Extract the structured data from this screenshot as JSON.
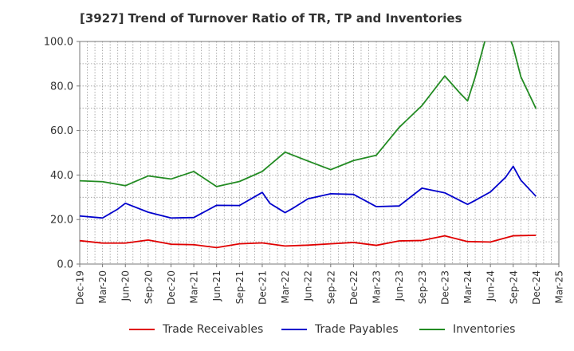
{
  "chart_data": {
    "type": "line",
    "title": "[3927]  Trend of Turnover Ratio of TR, TP and Inventories",
    "xlabel": "",
    "ylabel": "",
    "ylim": [
      0,
      100
    ],
    "y_ticks": [
      "0.0",
      "20.0",
      "40.0",
      "60.0",
      "80.0",
      "100.0"
    ],
    "x_ticks": [
      "Dec-19",
      "Mar-20",
      "Jun-20",
      "Sep-20",
      "Dec-20",
      "Mar-21",
      "Jun-21",
      "Sep-21",
      "Dec-21",
      "Mar-22",
      "Jun-22",
      "Sep-22",
      "Dec-22",
      "Mar-23",
      "Jun-23",
      "Sep-23",
      "Dec-23",
      "Mar-24",
      "Jun-24",
      "Sep-24",
      "Dec-24",
      "Mar-25"
    ],
    "grid": true,
    "legend_position": "bottom",
    "series": [
      {
        "name": "Trade Receivables",
        "color": "#e00000",
        "points": [
          [
            0,
            10.5
          ],
          [
            1,
            9.4
          ],
          [
            2,
            9.4
          ],
          [
            3,
            10.8
          ],
          [
            4,
            8.9
          ],
          [
            5,
            8.7
          ],
          [
            6,
            7.4
          ],
          [
            7,
            9.1
          ],
          [
            8,
            9.5
          ],
          [
            9,
            8.1
          ],
          [
            10,
            8.5
          ],
          [
            11,
            9.1
          ],
          [
            12,
            9.7
          ],
          [
            13,
            8.4
          ],
          [
            14,
            10.4
          ],
          [
            15,
            10.6
          ],
          [
            16,
            12.7
          ],
          [
            17,
            10.1
          ],
          [
            18,
            9.9
          ],
          [
            19,
            12.7
          ],
          [
            20,
            12.9
          ]
        ]
      },
      {
        "name": "Trade Payables",
        "color": "#0000cc",
        "points": [
          [
            0,
            21.6
          ],
          [
            1,
            20.7
          ],
          [
            1.667,
            24.7
          ],
          [
            2,
            27.3
          ],
          [
            3,
            23.3
          ],
          [
            4,
            20.7
          ],
          [
            5,
            20.9
          ],
          [
            6,
            26.4
          ],
          [
            7,
            26.3
          ],
          [
            8,
            32.2
          ],
          [
            8.333,
            27.3
          ],
          [
            9,
            23.1
          ],
          [
            9.333,
            25.0
          ],
          [
            10,
            29.3
          ],
          [
            11,
            31.6
          ],
          [
            12,
            31.3
          ],
          [
            13,
            25.8
          ],
          [
            14,
            26.1
          ],
          [
            15,
            34.1
          ],
          [
            16,
            32.0
          ],
          [
            17,
            26.8
          ],
          [
            17.333,
            28.6
          ],
          [
            18,
            32.4
          ],
          [
            18.667,
            39.0
          ],
          [
            19,
            43.9
          ],
          [
            19.333,
            37.7
          ],
          [
            20,
            30.4
          ]
        ]
      },
      {
        "name": "Inventories",
        "color": "#228b22",
        "points": [
          [
            0,
            37.4
          ],
          [
            1,
            37.0
          ],
          [
            2,
            35.2
          ],
          [
            3,
            39.6
          ],
          [
            4,
            38.2
          ],
          [
            5,
            41.6
          ],
          [
            6,
            34.8
          ],
          [
            7,
            37.1
          ],
          [
            8,
            41.6
          ],
          [
            9,
            50.3
          ],
          [
            10,
            46.3
          ],
          [
            11,
            42.4
          ],
          [
            12,
            46.5
          ],
          [
            13,
            48.9
          ],
          [
            14,
            61.4
          ],
          [
            15,
            71.2
          ],
          [
            16,
            84.5
          ],
          [
            16.667,
            76.8
          ],
          [
            17,
            73.3
          ],
          [
            17.333,
            84.0
          ],
          [
            17.833,
            103.0
          ],
          [
            18.833,
            102.0
          ],
          [
            19,
            97.5
          ],
          [
            19.333,
            84.2
          ],
          [
            20,
            69.8
          ]
        ]
      }
    ]
  }
}
